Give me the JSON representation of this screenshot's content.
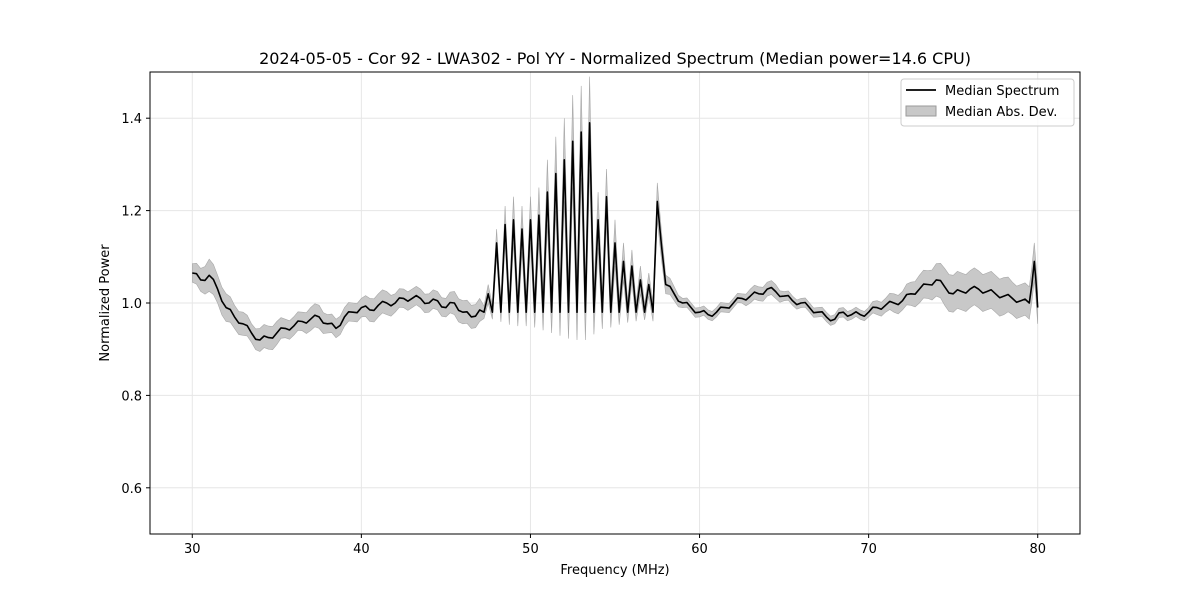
{
  "chart_data": {
    "type": "line",
    "title": "2024-05-05 - Cor 92 - LWA302 - Pol YY - Normalized Spectrum (Median power=14.6 CPU)",
    "xlabel": "Frequency (MHz)",
    "ylabel": "Normalized Power",
    "xlim": [
      27.5,
      82.5
    ],
    "ylim": [
      0.5,
      1.5
    ],
    "xticks": [
      30,
      40,
      50,
      60,
      70,
      80
    ],
    "yticks": [
      0.6,
      0.8,
      1.0,
      1.2,
      1.4
    ],
    "grid": true,
    "legend_position": "top-right",
    "series": [
      {
        "name": "Median Spectrum",
        "kind": "line",
        "color": "#000000"
      },
      {
        "name": "Median Abs. Dev.",
        "kind": "band",
        "color": "#c8c8c8"
      }
    ],
    "x": [
      30.0,
      30.5,
      31.0,
      31.5,
      32.0,
      32.5,
      33.0,
      33.5,
      34.0,
      34.5,
      35.0,
      35.5,
      36.0,
      36.5,
      37.0,
      37.5,
      38.0,
      38.5,
      39.0,
      39.5,
      40.0,
      40.5,
      41.0,
      41.5,
      42.0,
      42.5,
      43.0,
      43.5,
      44.0,
      44.5,
      45.0,
      45.5,
      46.0,
      46.5,
      47.0,
      47.5,
      48.0,
      48.5,
      49.0,
      49.5,
      50.0,
      50.5,
      51.0,
      51.5,
      52.0,
      52.5,
      53.0,
      53.5,
      54.0,
      54.5,
      55.0,
      55.5,
      56.0,
      56.5,
      57.0,
      57.5,
      58.0,
      58.5,
      59.0,
      59.5,
      60.0,
      60.5,
      61.0,
      61.5,
      62.0,
      62.5,
      63.0,
      63.5,
      64.0,
      64.5,
      65.0,
      65.5,
      66.0,
      66.5,
      67.0,
      67.5,
      68.0,
      68.5,
      69.0,
      69.5,
      70.0,
      70.5,
      71.0,
      71.5,
      72.0,
      72.5,
      73.0,
      73.5,
      74.0,
      74.5,
      75.0,
      75.5,
      76.0,
      76.5,
      77.0,
      77.5,
      78.0,
      78.5,
      79.0,
      79.5,
      79.8,
      80.0
    ],
    "median": [
      1.065,
      1.05,
      1.06,
      1.03,
      0.99,
      0.97,
      0.955,
      0.935,
      0.92,
      0.925,
      0.935,
      0.945,
      0.95,
      0.96,
      0.965,
      0.97,
      0.955,
      0.945,
      0.97,
      0.98,
      0.99,
      0.985,
      0.995,
      1.0,
      1.0,
      1.01,
      1.01,
      1.01,
      1.0,
      1.005,
      0.99,
      1.0,
      0.98,
      0.97,
      0.985,
      1.02,
      1.13,
      1.17,
      1.18,
      1.16,
      1.18,
      1.19,
      1.24,
      1.28,
      1.31,
      1.35,
      1.37,
      1.39,
      1.18,
      1.23,
      1.13,
      1.09,
      1.08,
      1.05,
      1.04,
      1.22,
      1.04,
      1.02,
      1.0,
      0.99,
      0.98,
      0.975,
      0.98,
      0.99,
      1.0,
      1.01,
      1.015,
      1.02,
      1.03,
      1.025,
      1.015,
      1.005,
      1.0,
      0.99,
      0.98,
      0.97,
      0.965,
      0.98,
      0.975,
      0.975,
      0.98,
      0.99,
      0.995,
      1.0,
      1.005,
      1.02,
      1.03,
      1.04,
      1.05,
      1.035,
      1.02,
      1.025,
      1.03,
      1.03,
      1.025,
      1.02,
      1.015,
      1.01,
      1.005,
      1.0,
      1.09,
      0.99
    ],
    "mad": [
      0.02,
      0.025,
      0.035,
      0.03,
      0.03,
      0.025,
      0.025,
      0.02,
      0.025,
      0.025,
      0.025,
      0.02,
      0.02,
      0.02,
      0.025,
      0.025,
      0.02,
      0.02,
      0.02,
      0.02,
      0.02,
      0.025,
      0.025,
      0.025,
      0.02,
      0.02,
      0.02,
      0.02,
      0.02,
      0.02,
      0.02,
      0.025,
      0.025,
      0.025,
      0.025,
      0.02,
      0.03,
      0.04,
      0.05,
      0.05,
      0.05,
      0.06,
      0.07,
      0.08,
      0.09,
      0.1,
      0.1,
      0.1,
      0.06,
      0.06,
      0.05,
      0.04,
      0.035,
      0.03,
      0.025,
      0.04,
      0.02,
      0.015,
      0.01,
      0.01,
      0.01,
      0.01,
      0.01,
      0.01,
      0.01,
      0.01,
      0.015,
      0.015,
      0.015,
      0.015,
      0.01,
      0.01,
      0.01,
      0.01,
      0.01,
      0.01,
      0.01,
      0.01,
      0.01,
      0.01,
      0.01,
      0.015,
      0.015,
      0.02,
      0.02,
      0.025,
      0.03,
      0.03,
      0.035,
      0.04,
      0.04,
      0.04,
      0.04,
      0.04,
      0.04,
      0.04,
      0.04,
      0.035,
      0.035,
      0.035,
      0.04,
      0.035
    ]
  }
}
